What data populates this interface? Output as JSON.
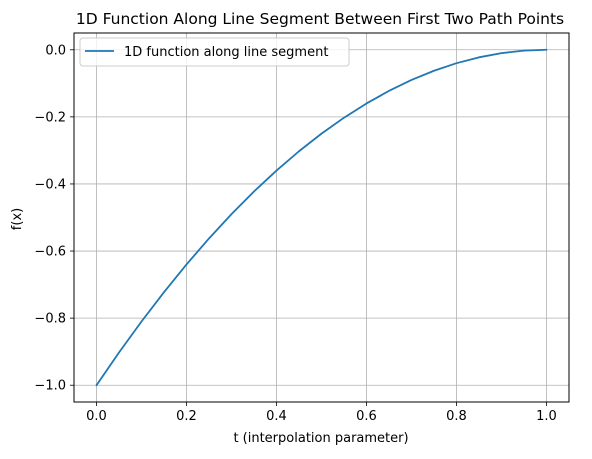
{
  "chart_data": {
    "type": "line",
    "title": "1D Function Along Line Segment Between First Two Path Points",
    "xlabel": "t (interpolation parameter)",
    "ylabel": "f(x)",
    "xlim": [
      -0.05,
      1.05
    ],
    "ylim": [
      -1.05,
      0.05
    ],
    "xticks": [
      0.0,
      0.2,
      0.4,
      0.6,
      0.8,
      1.0
    ],
    "xtick_labels": [
      "0.0",
      "0.2",
      "0.4",
      "0.6",
      "0.8",
      "1.0"
    ],
    "yticks": [
      0.0,
      -0.2,
      -0.4,
      -0.6,
      -0.8,
      -1.0
    ],
    "ytick_labels": [
      "0.0",
      "−0.2",
      "−0.4",
      "−0.6",
      "−0.8",
      "−1.0"
    ],
    "grid": true,
    "legend_position": "top-left",
    "series": [
      {
        "name": "1D function along line segment",
        "color": "#1f77b4",
        "x": [
          0.0,
          0.05,
          0.1,
          0.15,
          0.2,
          0.25,
          0.3,
          0.35,
          0.4,
          0.45,
          0.5,
          0.55,
          0.6,
          0.65,
          0.7,
          0.75,
          0.8,
          0.85,
          0.9,
          0.95,
          1.0
        ],
        "y": [
          -1.0,
          -0.9025,
          -0.81,
          -0.7225,
          -0.64,
          -0.5625,
          -0.49,
          -0.4225,
          -0.36,
          -0.3025,
          -0.25,
          -0.2025,
          -0.16,
          -0.1225,
          -0.09,
          -0.0625,
          -0.04,
          -0.0225,
          -0.01,
          -0.0025,
          0.0
        ]
      }
    ]
  }
}
